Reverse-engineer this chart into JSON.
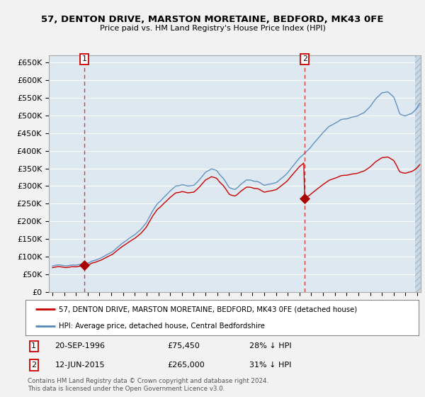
{
  "title_line1": "57, DENTON DRIVE, MARSTON MORETAINE, BEDFORD, MK43 0FE",
  "title_line2": "Price paid vs. HM Land Registry's House Price Index (HPI)",
  "ylim": [
    0,
    670000
  ],
  "yticks": [
    0,
    50000,
    100000,
    150000,
    200000,
    250000,
    300000,
    350000,
    400000,
    450000,
    500000,
    550000,
    600000,
    650000
  ],
  "ytick_labels": [
    "£0",
    "£50K",
    "£100K",
    "£150K",
    "£200K",
    "£250K",
    "£300K",
    "£350K",
    "£400K",
    "£450K",
    "£500K",
    "£550K",
    "£600K",
    "£650K"
  ],
  "xlim_start": 1993.7,
  "xlim_end": 2025.3,
  "sale1_x": 1996.72,
  "sale1_y": 75450,
  "sale1_label": "1",
  "sale2_x": 2015.44,
  "sale2_y": 265000,
  "sale2_label": "2",
  "legend_line1": "57, DENTON DRIVE, MARSTON MORETAINE, BEDFORD, MK43 0FE (detached house)",
  "legend_line2": "HPI: Average price, detached house, Central Bedfordshire",
  "footer": "Contains HM Land Registry data © Crown copyright and database right 2024.\nThis data is licensed under the Open Government Licence v3.0.",
  "bg_color": "#f2f2f2",
  "plot_bg_color": "#dde8f0",
  "red_line_color": "#cc0000",
  "blue_line_color": "#5588bb",
  "dashed_line_color": "#cc2222",
  "marker_color": "#aa0000",
  "hatch_fill": "#c8d8e4",
  "grid_color": "#ffffff",
  "border_color": "#aaaaaa"
}
